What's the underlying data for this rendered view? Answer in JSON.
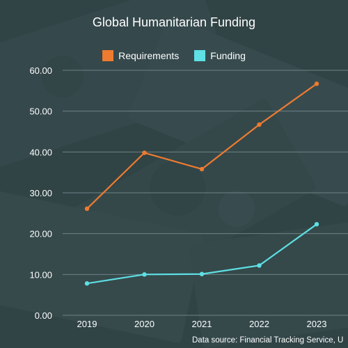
{
  "colors": {
    "requirements": "#ee7b30",
    "funding": "#5ee0e4",
    "grid": "#6f8386",
    "text": "#ffffff"
  },
  "chart_data": {
    "type": "line",
    "title": "Global Humanitarian Funding",
    "categories": [
      "2019",
      "2020",
      "2021",
      "2022",
      "2023"
    ],
    "series": [
      {
        "name": "Requirements",
        "values": [
          26.1,
          39.8,
          35.8,
          46.7,
          56.7
        ]
      },
      {
        "name": "Funding",
        "values": [
          7.8,
          10.0,
          10.1,
          12.2,
          22.3
        ]
      }
    ],
    "y_ticks": [
      "0.00",
      "10.00",
      "20.00",
      "30.00",
      "40.00",
      "50.00",
      "60.00"
    ],
    "ylim": [
      0,
      60
    ],
    "grid": true,
    "legend_position": "top-center",
    "source": "Data source: Financial Tracking Service, U"
  }
}
